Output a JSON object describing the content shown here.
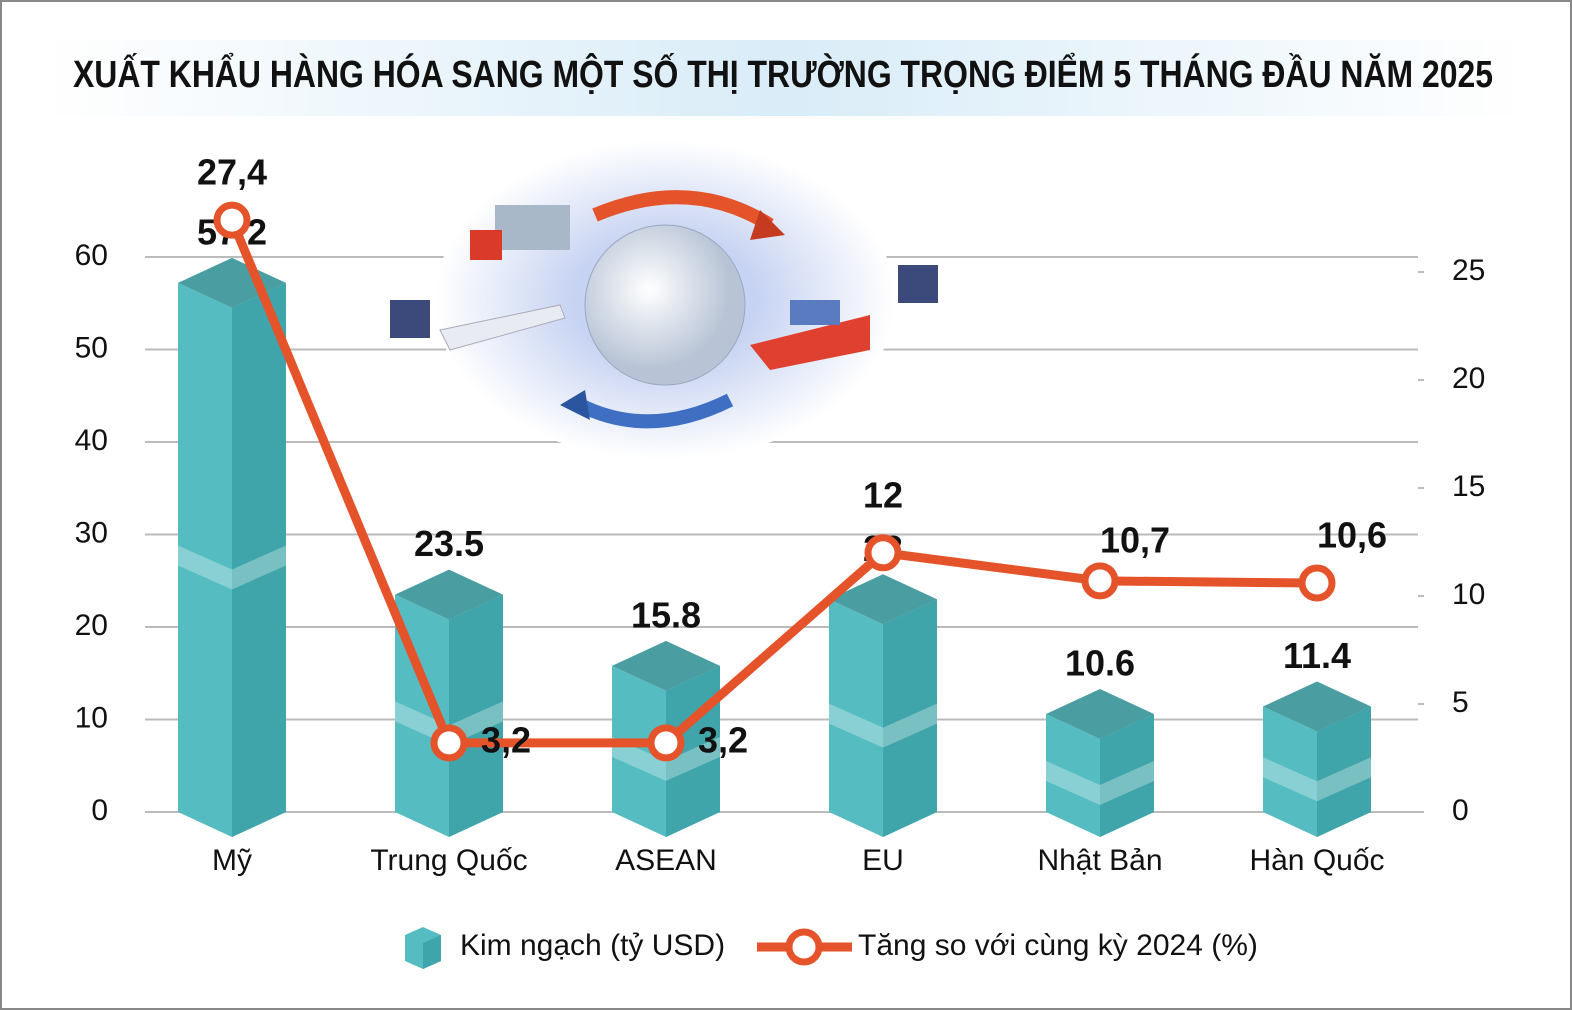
{
  "chart_data": {
    "type": "combo",
    "title": "XUẤT KHẨU HÀNG HÓA SANG MỘT SỐ THỊ TRƯỜNG TRỌNG ĐIỂM 5 THÁNG ĐẦU NĂM 2025",
    "categories": [
      "Mỹ",
      "Trung Quốc",
      "ASEAN",
      "EU",
      "Nhật Bản",
      "Hàn Quốc"
    ],
    "series": [
      {
        "name": "Kim ngạch (tỷ USD)",
        "type": "bar",
        "color": "#55bcc1",
        "values": [
          57.2,
          23.5,
          15.8,
          23,
          10.6,
          11.4
        ]
      },
      {
        "name": "Tăng so với cùng kỳ 2024 (%)",
        "type": "line",
        "axis": "y2",
        "color": "#e5532a",
        "values": [
          27.4,
          3.2,
          3.2,
          12,
          10.7,
          10.6
        ],
        "value_labels": [
          "27,4",
          "3,2",
          "3,2",
          "12",
          "10,7",
          "10,6"
        ]
      }
    ],
    "ylim": [
      0,
      60
    ],
    "yticks": [
      0,
      10,
      20,
      30,
      40,
      50,
      60
    ],
    "y2lim": [
      0,
      25
    ],
    "y2ticks": [
      0,
      5,
      10,
      15,
      20,
      25
    ],
    "grid": true
  }
}
